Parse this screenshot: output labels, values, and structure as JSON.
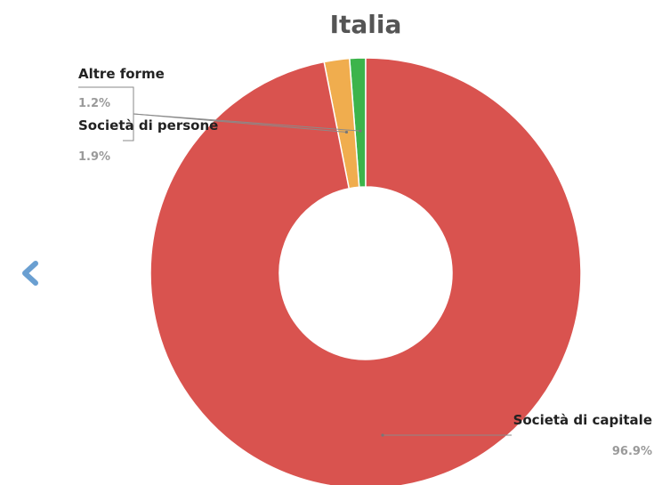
{
  "chart_data": {
    "type": "pie",
    "variant": "donut",
    "title": "Italia",
    "slices": [
      {
        "label": "Altre forme",
        "value": 1.2,
        "display": "1.2%",
        "color": "#3cb44b"
      },
      {
        "label": "Società di persone",
        "value": 1.9,
        "display": "1.9%",
        "color": "#f0ad4e"
      },
      {
        "label": "Società di capitale",
        "value": 96.9,
        "display": "96.9%",
        "color": "#d9534f"
      }
    ]
  },
  "nav": {
    "prev_icon": "chevron-left-icon",
    "prev_color": "#6a9fd1"
  }
}
